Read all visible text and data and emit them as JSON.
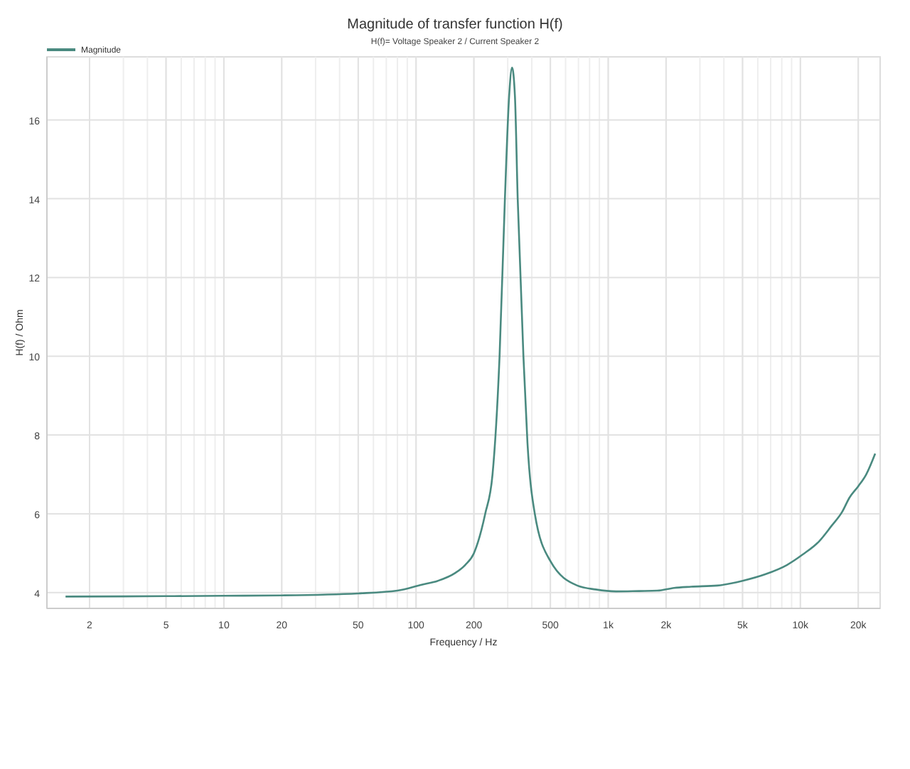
{
  "chart_data": {
    "type": "line",
    "title": "Magnitude of transfer function H(f)",
    "subtitle": "H(f)= Voltage Speaker 2 / Current Speaker 2",
    "xlabel": "Frequency / Hz",
    "ylabel": "H(f) / Ohm",
    "log": "x",
    "grid": true,
    "legend": "top left",
    "xlim": [
      1.2,
      26000
    ],
    "ylim": [
      3.6,
      17.6
    ],
    "xticks": [
      2,
      5,
      10,
      20,
      50,
      100,
      200,
      500,
      {
        "value": 1000,
        "label": "1k"
      },
      {
        "value": 2000,
        "label": "2k"
      },
      {
        "value": 5000,
        "label": "5k"
      },
      {
        "value": 10000,
        "label": "10k"
      },
      {
        "value": 20000,
        "label": "20k"
      }
    ],
    "yticks": [
      4,
      6,
      8,
      10,
      12,
      14,
      16
    ],
    "series": [
      {
        "name": "Magnitude",
        "color": "#4a8a80",
        "x": [
          1.5,
          5,
          10,
          20,
          50,
          80,
          107,
          130,
          160,
          180,
          200,
          229,
          250,
          272,
          290,
          305,
          316,
          327,
          338,
          362,
          380,
          415,
          500,
          690,
          860,
          1100,
          1450,
          1800,
          2200,
          2700,
          3700,
          5000,
          6600,
          8500,
          10300,
          12500,
          14500,
          16500,
          18000,
          20000,
          22000,
          24500
        ],
        "values": [
          3.9,
          3.91,
          3.92,
          3.93,
          3.98,
          4.05,
          4.2,
          4.3,
          4.5,
          4.7,
          5.0,
          6.0,
          7.0,
          10.0,
          14.0,
          16.6,
          17.33,
          16.6,
          14.0,
          10.0,
          7.8,
          6.0,
          4.8,
          4.18,
          4.08,
          4.03,
          4.04,
          4.05,
          4.12,
          4.15,
          4.18,
          4.3,
          4.47,
          4.7,
          4.97,
          5.3,
          5.69,
          6.05,
          6.41,
          6.7,
          7.0,
          7.53
        ]
      }
    ]
  }
}
